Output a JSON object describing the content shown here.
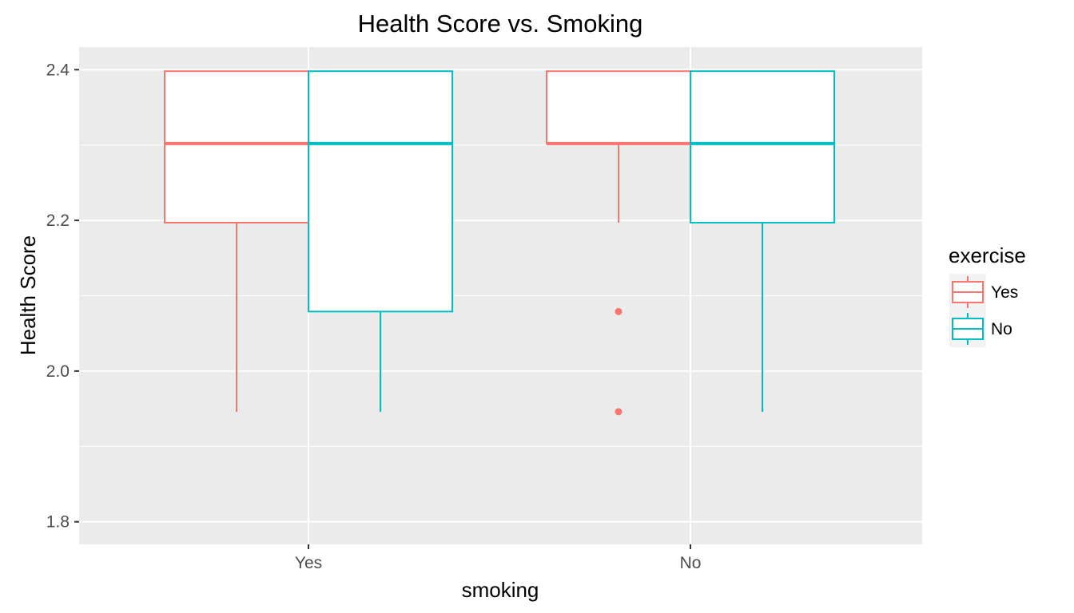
{
  "chart_data": {
    "type": "box",
    "title": "Health Score vs. Smoking",
    "xlabel": "smoking",
    "ylabel": "Health Score",
    "categories": [
      "Yes",
      "No"
    ],
    "ylim": [
      1.77,
      2.43
    ],
    "yticks": [
      1.8,
      2.0,
      2.2,
      2.4
    ],
    "ytick_labels": [
      "1.8",
      "2.0",
      "2.2",
      "2.4"
    ],
    "grid": true,
    "legend": {
      "title": "exercise",
      "position": "right"
    },
    "series": [
      {
        "name": "Yes",
        "color": "#F8766D",
        "boxes": [
          {
            "category": "Yes",
            "whisker_low": 1.946,
            "q1": 2.197,
            "median": 2.302,
            "q3": 2.398,
            "whisker_high": 2.398,
            "outliers": []
          },
          {
            "category": "No",
            "whisker_low": 2.197,
            "q1": 2.302,
            "median": 2.302,
            "q3": 2.398,
            "whisker_high": 2.398,
            "outliers": [
              2.079,
              1.946
            ]
          }
        ]
      },
      {
        "name": "No",
        "color": "#00BFC4",
        "boxes": [
          {
            "category": "Yes",
            "whisker_low": 1.946,
            "q1": 2.079,
            "median": 2.302,
            "q3": 2.398,
            "whisker_high": 2.398,
            "outliers": []
          },
          {
            "category": "No",
            "whisker_low": 1.946,
            "q1": 2.197,
            "median": 2.302,
            "q3": 2.398,
            "whisker_high": 2.398,
            "outliers": []
          }
        ]
      }
    ]
  }
}
